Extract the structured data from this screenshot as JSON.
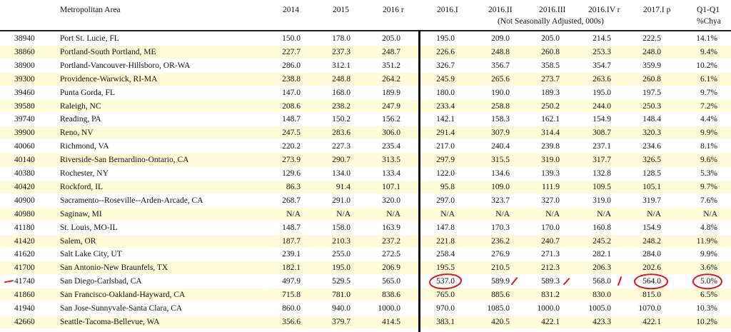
{
  "table": {
    "headers": {
      "area": "Metropolitan Area",
      "y2014": "2014",
      "y2015": "2015",
      "y2016r": "2016 r",
      "q1": "2016.I",
      "q2": "2016.II",
      "q3": "2016.III",
      "q4": "2016.IV r",
      "q2017": "2017.I p",
      "chg": "Q1-Q1",
      "chg_sub": "%Chya",
      "note": "(Not Seasonally Adjusted, 000s)"
    },
    "rows": [
      {
        "code": "38940",
        "area": "Port St. Lucie, FL",
        "y2014": "150.0",
        "y2015": "178.0",
        "y2016r": "205.0",
        "q1": "195.0",
        "q2": "209.0",
        "q3": "205.0",
        "q4": "214.5",
        "q2017": "222.5",
        "chg": "14.1%"
      },
      {
        "code": "38860",
        "area": "Portland-South Portland, ME",
        "y2014": "227.7",
        "y2015": "237.3",
        "y2016r": "248.7",
        "q1": "226.6",
        "q2": "248.8",
        "q3": "260.8",
        "q4": "253.3",
        "q2017": "248.0",
        "chg": "9.4%"
      },
      {
        "code": "38900",
        "area": "Portland-Vancouver-Hillsboro, OR-WA",
        "y2014": "286.0",
        "y2015": "312.1",
        "y2016r": "351.2",
        "q1": "326.7",
        "q2": "356.7",
        "q3": "358.5",
        "q4": "354.7",
        "q2017": "359.9",
        "chg": "10.2%"
      },
      {
        "code": "39300",
        "area": "Providence-Warwick, RI-MA",
        "y2014": "238.8",
        "y2015": "248.8",
        "y2016r": "264.2",
        "q1": "245.9",
        "q2": "265.6",
        "q3": "273.7",
        "q4": "263.6",
        "q2017": "260.8",
        "chg": "6.1%"
      },
      {
        "code": "39460",
        "area": "Punta Gorda, FL",
        "y2014": "147.0",
        "y2015": "168.0",
        "y2016r": "189.9",
        "q1": "180.0",
        "q2": "190.0",
        "q3": "189.3",
        "q4": "195.0",
        "q2017": "197.5",
        "chg": "9.7%"
      },
      {
        "code": "39580",
        "area": "Raleigh, NC",
        "y2014": "208.6",
        "y2015": "238.2",
        "y2016r": "247.9",
        "q1": "233.4",
        "q2": "258.8",
        "q3": "250.2",
        "q4": "244.0",
        "q2017": "250.3",
        "chg": "7.2%"
      },
      {
        "code": "39740",
        "area": "Reading, PA",
        "y2014": "148.7",
        "y2015": "150.2",
        "y2016r": "156.2",
        "q1": "142.1",
        "q2": "158.3",
        "q3": "162.1",
        "q4": "154.9",
        "q2017": "148.4",
        "chg": "4.4%"
      },
      {
        "code": "39900",
        "area": "Reno, NV",
        "y2014": "247.5",
        "y2015": "283.6",
        "y2016r": "306.0",
        "q1": "291.4",
        "q2": "307.9",
        "q3": "314.4",
        "q4": "308.7",
        "q2017": "320.3",
        "chg": "9.9%"
      },
      {
        "code": "40060",
        "area": "Richmond, VA",
        "y2014": "220.2",
        "y2015": "227.3",
        "y2016r": "235.4",
        "q1": "217.0",
        "q2": "240.4",
        "q3": "239.8",
        "q4": "237.1",
        "q2017": "234.6",
        "chg": "8.1%"
      },
      {
        "code": "40140",
        "area": "Riverside-San Bernardino-Ontario, CA",
        "y2014": "273.9",
        "y2015": "290.7",
        "y2016r": "313.5",
        "q1": "297.9",
        "q2": "315.5",
        "q3": "319.0",
        "q4": "317.7",
        "q2017": "326.5",
        "chg": "9.6%"
      },
      {
        "code": "40380",
        "area": "Rochester, NY",
        "y2014": "129.6",
        "y2015": "134.0",
        "y2016r": "133.4",
        "q1": "122.0",
        "q2": "134.6",
        "q3": "139.3",
        "q4": "132.8",
        "q2017": "128.5",
        "chg": "5.3%"
      },
      {
        "code": "40420",
        "area": "Rockford, IL",
        "y2014": "86.3",
        "y2015": "91.4",
        "y2016r": "107.1",
        "q1": "95.8",
        "q2": "109.0",
        "q3": "111.9",
        "q4": "109.5",
        "q2017": "105.1",
        "chg": "9.7%"
      },
      {
        "code": "40900",
        "area": "Sacramento--Roseville--Arden-Arcade, CA",
        "y2014": "268.7",
        "y2015": "291.0",
        "y2016r": "320.0",
        "q1": "297.0",
        "q2": "323.7",
        "q3": "327.0",
        "q4": "319.0",
        "q2017": "319.7",
        "chg": "7.6%"
      },
      {
        "code": "40980",
        "area": "Saginaw, MI",
        "y2014": "N/A",
        "y2015": "N/A",
        "y2016r": "N/A",
        "q1": "N/A",
        "q2": "N/A",
        "q3": "N/A",
        "q4": "N/A",
        "q2017": "N/A",
        "chg": "N/A"
      },
      {
        "code": "41180",
        "area": "St. Louis, MO-IL",
        "y2014": "148.7",
        "y2015": "158.0",
        "y2016r": "163.9",
        "q1": "147.8",
        "q2": "170.3",
        "q3": "170.0",
        "q4": "160.8",
        "q2017": "154.9",
        "chg": "4.8%"
      },
      {
        "code": "41420",
        "area": "Salem, OR",
        "y2014": "187.7",
        "y2015": "210.3",
        "y2016r": "237.2",
        "q1": "221.8",
        "q2": "236.2",
        "q3": "240.7",
        "q4": "245.2",
        "q2017": "248.2",
        "chg": "11.9%"
      },
      {
        "code": "41620",
        "area": "Salt Lake City, UT",
        "y2014": "239.1",
        "y2015": "255.0",
        "y2016r": "272.5",
        "q1": "258.4",
        "q2": "276.9",
        "q3": "271.3",
        "q4": "282.1",
        "q2017": "284.0",
        "chg": "9.9%"
      },
      {
        "code": "41700",
        "area": "San Antonio-New Braunfels, TX",
        "y2014": "182.1",
        "y2015": "195.0",
        "y2016r": "206.9",
        "q1": "195.5",
        "q2": "210.5",
        "q3": "212.3",
        "q4": "206.3",
        "q2017": "202.6",
        "chg": "3.6%"
      },
      {
        "code": "41740",
        "area": "San Diego-Carlsbad, CA",
        "y2014": "497.9",
        "y2015": "529.5",
        "y2016r": "565.0",
        "q1": "537.0",
        "q2": "589.9",
        "q3": "589.3",
        "q4": "568.0",
        "q2017": "564.0",
        "chg": "5.0%"
      },
      {
        "code": "41860",
        "area": "San Francisco-Oakland-Hayward, CA",
        "y2014": "715.8",
        "y2015": "781.0",
        "y2016r": "838.6",
        "q1": "765.0",
        "q2": "885.6",
        "q3": "831.2",
        "q4": "830.0",
        "q2017": "815.0",
        "chg": "6.5%"
      },
      {
        "code": "41940",
        "area": "San Jose-Sunnyvale-Santa Clara, CA",
        "y2014": "860.0",
        "y2015": "940.0",
        "y2016r": "1000.0",
        "q1": "970.0",
        "q2": "1085.0",
        "q3": "1000.0",
        "q4": "1005.0",
        "q2017": "1070.0",
        "chg": "10.3%"
      },
      {
        "code": "42660",
        "area": "Seattle-Tacoma-Bellevue, WA",
        "y2014": "356.6",
        "y2015": "379.7",
        "y2016r": "414.5",
        "q1": "383.1",
        "q2": "420.5",
        "q3": "422.1",
        "q4": "423.3",
        "q2017": "422.1",
        "chg": "10.2%"
      }
    ]
  },
  "annotations": {
    "ink_color": "#e0161b",
    "highlighted_row_code": "41740"
  }
}
